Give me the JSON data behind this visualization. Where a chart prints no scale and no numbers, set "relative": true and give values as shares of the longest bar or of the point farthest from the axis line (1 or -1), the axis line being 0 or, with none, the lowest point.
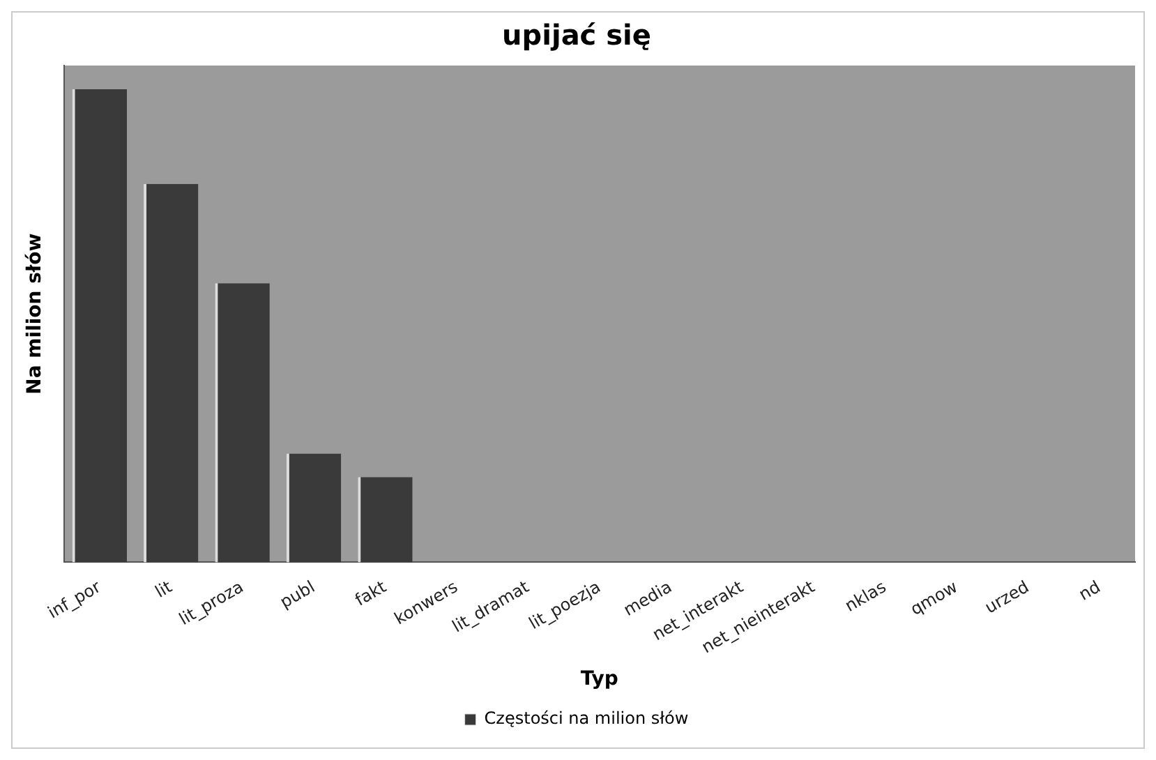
{
  "chart_data": {
    "type": "bar",
    "title": "upijać się",
    "xlabel": "Typ",
    "ylabel": "Na milion słów",
    "relative": true,
    "legend": "bottom",
    "grid": false,
    "categories": [
      "inf_por",
      "lit",
      "lit_proza",
      "publ",
      "fakt",
      "konwers",
      "lit_dramat",
      "lit_poezja",
      "media",
      "net_interakt",
      "net_nieinterakt",
      "nklas",
      "qmow",
      "urzed",
      "nd"
    ],
    "series": [
      {
        "name": "Częstości na milion słów",
        "color": "#3a3a3a",
        "values": [
          1,
          0.8,
          0.59,
          0.23,
          0.18,
          0,
          0,
          0,
          0,
          0,
          0,
          0,
          0,
          0,
          0
        ]
      }
    ]
  }
}
